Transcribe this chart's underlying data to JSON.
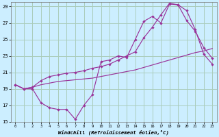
{
  "bg_color": "#cceeff",
  "grid_color": "#aaccbb",
  "line_color": "#993399",
  "xlabel": "Windchill (Refroidissement éolien,°C)",
  "xlim": [
    -0.5,
    23.5
  ],
  "ylim": [
    15,
    29.5
  ],
  "yticks": [
    15,
    17,
    19,
    21,
    23,
    25,
    27,
    29
  ],
  "xticks": [
    0,
    1,
    2,
    3,
    4,
    5,
    6,
    7,
    8,
    9,
    10,
    11,
    12,
    13,
    14,
    15,
    16,
    17,
    18,
    19,
    20,
    21,
    22,
    23
  ],
  "line1_x": [
    0,
    1,
    2,
    3,
    4,
    5,
    6,
    7,
    8,
    9,
    10,
    11,
    12,
    13,
    14,
    15,
    16,
    17,
    18,
    19,
    20,
    21,
    22,
    23
  ],
  "line1_y": [
    19.5,
    19.0,
    19.0,
    17.3,
    16.7,
    16.5,
    16.5,
    15.3,
    17.0,
    18.3,
    22.3,
    22.5,
    23.0,
    22.8,
    25.0,
    27.2,
    27.8,
    27.0,
    29.3,
    29.2,
    27.3,
    26.0,
    24.0,
    22.7
  ],
  "line2_x": [
    0,
    1,
    2,
    3,
    4,
    5,
    6,
    7,
    8,
    9,
    10,
    11,
    12,
    13,
    14,
    15,
    16,
    17,
    18,
    19,
    20,
    21,
    22,
    23
  ],
  "line2_y": [
    19.5,
    19.0,
    19.2,
    20.0,
    20.5,
    20.7,
    20.9,
    21.0,
    21.2,
    21.5,
    21.7,
    22.0,
    22.5,
    23.0,
    23.5,
    25.2,
    26.5,
    28.0,
    29.4,
    29.2,
    28.5,
    26.2,
    23.2,
    22.0
  ],
  "line3_x": [
    0,
    1,
    2,
    3,
    4,
    5,
    6,
    7,
    8,
    9,
    10,
    11,
    12,
    13,
    14,
    15,
    16,
    17,
    18,
    19,
    20,
    21,
    22,
    23
  ],
  "line3_y": [
    19.5,
    19.0,
    19.2,
    19.5,
    19.7,
    19.9,
    20.0,
    20.1,
    20.2,
    20.3,
    20.5,
    20.7,
    20.9,
    21.1,
    21.3,
    21.6,
    21.9,
    22.2,
    22.5,
    22.8,
    23.1,
    23.4,
    23.6,
    23.9
  ]
}
